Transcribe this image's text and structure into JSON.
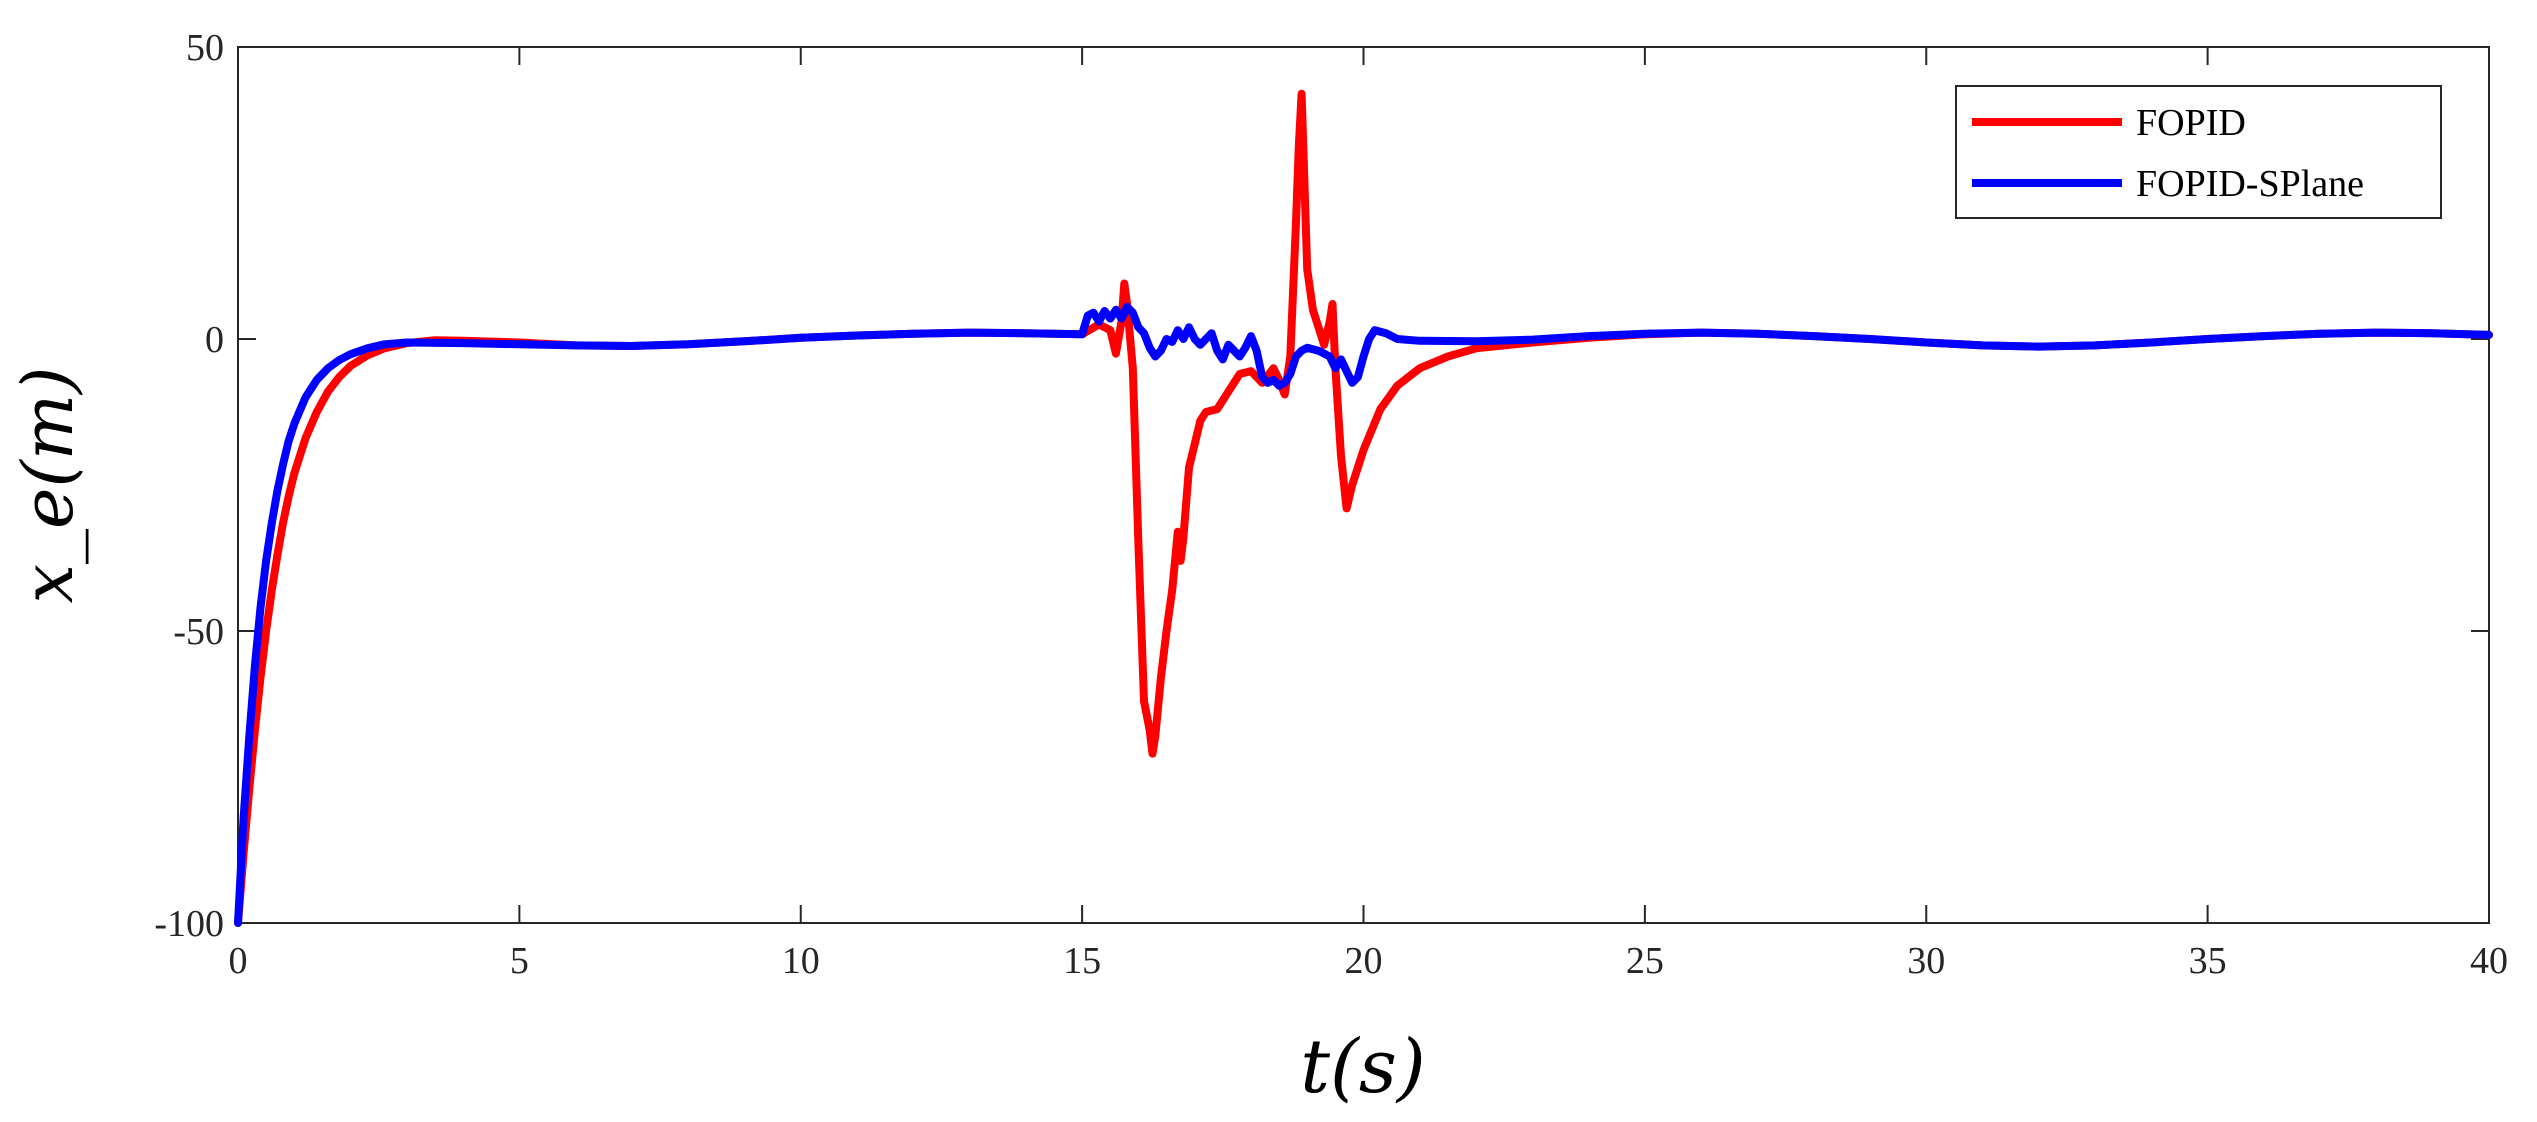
{
  "chart_data": {
    "type": "line",
    "title": "",
    "xlabel": "t(s)",
    "ylabel": "x_e(m)",
    "xlim": [
      0,
      40
    ],
    "ylim": [
      -100,
      50
    ],
    "xticks": [
      0,
      5,
      10,
      15,
      20,
      25,
      30,
      35,
      40
    ],
    "yticks": [
      -100,
      -50,
      0,
      50
    ],
    "xtick_labels": [
      "0",
      "5",
      "10",
      "15",
      "20",
      "25",
      "30",
      "35",
      "40"
    ],
    "ytick_labels": [
      "-100",
      "-50",
      "0",
      "50"
    ],
    "grid": false,
    "legend_position": "top-right",
    "series": [
      {
        "name": "FOPID",
        "color": "#ff0000",
        "points": [
          [
            0,
            -100
          ],
          [
            0.1,
            -88
          ],
          [
            0.2,
            -77
          ],
          [
            0.3,
            -67
          ],
          [
            0.4,
            -58
          ],
          [
            0.5,
            -50
          ],
          [
            0.6,
            -43
          ],
          [
            0.7,
            -37
          ],
          [
            0.8,
            -31.5
          ],
          [
            0.9,
            -27
          ],
          [
            1.0,
            -23
          ],
          [
            1.2,
            -17
          ],
          [
            1.4,
            -12.5
          ],
          [
            1.6,
            -9
          ],
          [
            1.8,
            -6.5
          ],
          [
            2.0,
            -4.6
          ],
          [
            2.3,
            -2.8
          ],
          [
            2.6,
            -1.6
          ],
          [
            3.0,
            -0.7
          ],
          [
            3.5,
            -0.2
          ],
          [
            4,
            -0.3
          ],
          [
            5,
            -0.6
          ],
          [
            6,
            -1.1
          ],
          [
            7,
            -1.2
          ],
          [
            8,
            -0.9
          ],
          [
            9,
            -0.4
          ],
          [
            10,
            0.2
          ],
          [
            11,
            0.6
          ],
          [
            12,
            0.9
          ],
          [
            13,
            1.1
          ],
          [
            14,
            1.0
          ],
          [
            15,
            0.8
          ],
          [
            15.3,
            2.5
          ],
          [
            15.5,
            1.5
          ],
          [
            15.6,
            -2.5
          ],
          [
            15.7,
            3
          ],
          [
            15.75,
            9.5
          ],
          [
            15.8,
            6
          ],
          [
            15.9,
            -5
          ],
          [
            16.0,
            -35
          ],
          [
            16.1,
            -62
          ],
          [
            16.2,
            -67
          ],
          [
            16.25,
            -71
          ],
          [
            16.3,
            -68
          ],
          [
            16.4,
            -58
          ],
          [
            16.5,
            -50
          ],
          [
            16.6,
            -43
          ],
          [
            16.7,
            -33
          ],
          [
            16.75,
            -38
          ],
          [
            16.8,
            -34
          ],
          [
            16.9,
            -22
          ],
          [
            17.0,
            -18
          ],
          [
            17.1,
            -14
          ],
          [
            17.2,
            -12.5
          ],
          [
            17.4,
            -12
          ],
          [
            17.6,
            -9
          ],
          [
            17.8,
            -6
          ],
          [
            18.0,
            -5.5
          ],
          [
            18.2,
            -7.5
          ],
          [
            18.4,
            -5
          ],
          [
            18.5,
            -7
          ],
          [
            18.6,
            -9.5
          ],
          [
            18.7,
            -3
          ],
          [
            18.8,
            20
          ],
          [
            18.85,
            33
          ],
          [
            18.9,
            42
          ],
          [
            19.0,
            12
          ],
          [
            19.1,
            5
          ],
          [
            19.2,
            2
          ],
          [
            19.3,
            -1
          ],
          [
            19.4,
            3
          ],
          [
            19.45,
            6
          ],
          [
            19.5,
            -5
          ],
          [
            19.6,
            -20
          ],
          [
            19.7,
            -29
          ],
          [
            19.8,
            -25
          ],
          [
            20.0,
            -19
          ],
          [
            20.3,
            -12
          ],
          [
            20.6,
            -8
          ],
          [
            21.0,
            -5
          ],
          [
            21.5,
            -3
          ],
          [
            22,
            -1.6
          ],
          [
            23,
            -0.6
          ],
          [
            24,
            0.2
          ],
          [
            25,
            0.8
          ],
          [
            26,
            1.1
          ],
          [
            27,
            0.9
          ],
          [
            28,
            0.5
          ],
          [
            29,
            0
          ],
          [
            30,
            -0.6
          ],
          [
            31,
            -1.1
          ],
          [
            32,
            -1.3
          ],
          [
            33,
            -1.1
          ],
          [
            34,
            -0.6
          ],
          [
            35,
            0
          ],
          [
            36,
            0.5
          ],
          [
            37,
            0.9
          ],
          [
            38,
            1.1
          ],
          [
            39,
            1.0
          ],
          [
            40,
            0.7
          ]
        ]
      },
      {
        "name": "FOPID-SPlane",
        "color": "#0000ff",
        "points": [
          [
            0,
            -100
          ],
          [
            0.1,
            -82
          ],
          [
            0.2,
            -68
          ],
          [
            0.3,
            -56
          ],
          [
            0.4,
            -46
          ],
          [
            0.5,
            -38
          ],
          [
            0.6,
            -31.5
          ],
          [
            0.7,
            -26
          ],
          [
            0.8,
            -21.5
          ],
          [
            0.9,
            -17.5
          ],
          [
            1.0,
            -14.5
          ],
          [
            1.2,
            -10
          ],
          [
            1.4,
            -7
          ],
          [
            1.6,
            -5
          ],
          [
            1.8,
            -3.6
          ],
          [
            2.0,
            -2.6
          ],
          [
            2.3,
            -1.6
          ],
          [
            2.6,
            -0.9
          ],
          [
            3.0,
            -0.6
          ],
          [
            4,
            -0.7
          ],
          [
            5,
            -0.9
          ],
          [
            6,
            -1.1
          ],
          [
            7,
            -1.2
          ],
          [
            8,
            -0.9
          ],
          [
            9,
            -0.4
          ],
          [
            10,
            0.2
          ],
          [
            11,
            0.6
          ],
          [
            12,
            0.9
          ],
          [
            13,
            1.1
          ],
          [
            14,
            1.0
          ],
          [
            15,
            0.8
          ],
          [
            15.1,
            4
          ],
          [
            15.2,
            4.5
          ],
          [
            15.3,
            3
          ],
          [
            15.4,
            4.8
          ],
          [
            15.5,
            3.5
          ],
          [
            15.6,
            5
          ],
          [
            15.7,
            3.5
          ],
          [
            15.8,
            5.5
          ],
          [
            15.9,
            4.5
          ],
          [
            16.0,
            2
          ],
          [
            16.1,
            1
          ],
          [
            16.2,
            -1.5
          ],
          [
            16.3,
            -3
          ],
          [
            16.4,
            -2
          ],
          [
            16.5,
            0
          ],
          [
            16.6,
            -0.5
          ],
          [
            16.7,
            1.5
          ],
          [
            16.8,
            0
          ],
          [
            16.9,
            2
          ],
          [
            17.0,
            0
          ],
          [
            17.1,
            -1
          ],
          [
            17.2,
            0
          ],
          [
            17.3,
            1
          ],
          [
            17.4,
            -2
          ],
          [
            17.5,
            -3.5
          ],
          [
            17.6,
            -1
          ],
          [
            17.7,
            -2
          ],
          [
            17.8,
            -3
          ],
          [
            17.9,
            -1.5
          ],
          [
            18.0,
            0.5
          ],
          [
            18.1,
            -2
          ],
          [
            18.2,
            -6.5
          ],
          [
            18.3,
            -7.5
          ],
          [
            18.4,
            -7
          ],
          [
            18.5,
            -8
          ],
          [
            18.6,
            -7.5
          ],
          [
            18.7,
            -6
          ],
          [
            18.8,
            -3
          ],
          [
            18.9,
            -2
          ],
          [
            19.0,
            -1.5
          ],
          [
            19.2,
            -2
          ],
          [
            19.4,
            -3
          ],
          [
            19.5,
            -5
          ],
          [
            19.6,
            -3.5
          ],
          [
            19.7,
            -5.5
          ],
          [
            19.8,
            -7.5
          ],
          [
            19.9,
            -6.5
          ],
          [
            20.0,
            -3
          ],
          [
            20.1,
            0
          ],
          [
            20.2,
            1.5
          ],
          [
            20.4,
            1
          ],
          [
            20.6,
            0
          ],
          [
            21.0,
            -0.3
          ],
          [
            22,
            -0.4
          ],
          [
            23,
            -0.1
          ],
          [
            24,
            0.5
          ],
          [
            25,
            0.9
          ],
          [
            26,
            1.1
          ],
          [
            27,
            0.9
          ],
          [
            28,
            0.5
          ],
          [
            29,
            0
          ],
          [
            30,
            -0.6
          ],
          [
            31,
            -1.1
          ],
          [
            32,
            -1.3
          ],
          [
            33,
            -1.1
          ],
          [
            34,
            -0.6
          ],
          [
            35,
            0
          ],
          [
            36,
            0.5
          ],
          [
            37,
            0.9
          ],
          [
            38,
            1.1
          ],
          [
            39,
            1.0
          ],
          [
            40,
            0.7
          ]
        ]
      }
    ]
  }
}
